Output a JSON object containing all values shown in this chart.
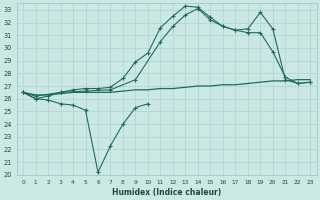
{
  "xlabel": "Humidex (Indice chaleur)",
  "bg_color": "#cce8e4",
  "grid_color": "#b0d8d4",
  "line_color": "#1e6b5e",
  "xlim": [
    -0.5,
    23.5
  ],
  "ylim": [
    20,
    33.5
  ],
  "xticks": [
    0,
    1,
    2,
    3,
    4,
    5,
    6,
    7,
    8,
    9,
    10,
    11,
    12,
    13,
    14,
    15,
    16,
    17,
    18,
    19,
    20,
    21,
    22,
    23
  ],
  "yticks": [
    20,
    21,
    22,
    23,
    24,
    25,
    26,
    27,
    28,
    29,
    30,
    31,
    32,
    33
  ],
  "line1_x": [
    0,
    1,
    2,
    3,
    4,
    5,
    6,
    7,
    8,
    9,
    10
  ],
  "line1_y": [
    26.5,
    26.0,
    25.9,
    25.6,
    25.5,
    25.1,
    20.2,
    22.3,
    24.0,
    25.3,
    25.6
  ],
  "line2_x": [
    0,
    1,
    2,
    3,
    4,
    5,
    6,
    7,
    8,
    9,
    10,
    11,
    12,
    13,
    14,
    15,
    16,
    17,
    18,
    19,
    20,
    21,
    22,
    23
  ],
  "line2_y": [
    26.5,
    26.3,
    26.3,
    26.4,
    26.5,
    26.5,
    26.5,
    26.5,
    26.6,
    26.7,
    26.7,
    26.8,
    26.8,
    26.9,
    27.0,
    27.0,
    27.1,
    27.1,
    27.2,
    27.3,
    27.4,
    27.4,
    27.5,
    27.5
  ],
  "line3_x": [
    0,
    1,
    2,
    3,
    4,
    5,
    6,
    7,
    8,
    9,
    10,
    11,
    12,
    13,
    14,
    15,
    16,
    17,
    18,
    19,
    20,
    21,
    22,
    23
  ],
  "line3_y": [
    26.5,
    26.0,
    26.2,
    26.5,
    26.7,
    26.8,
    26.8,
    26.9,
    27.6,
    28.9,
    29.6,
    31.6,
    32.5,
    33.3,
    33.2,
    32.4,
    31.7,
    31.4,
    31.2,
    31.2,
    29.7,
    27.7,
    27.2,
    27.3
  ],
  "line4_x": [
    0,
    1,
    3,
    5,
    7,
    9,
    11,
    12,
    13,
    14,
    15,
    16,
    17,
    18,
    19,
    20,
    21,
    22,
    23
  ],
  "line4_y": [
    26.5,
    26.2,
    26.5,
    26.6,
    26.7,
    27.5,
    30.5,
    31.7,
    32.6,
    33.1,
    32.2,
    31.7,
    31.4,
    31.5,
    32.8,
    31.5,
    27.5,
    27.2,
    27.3
  ]
}
